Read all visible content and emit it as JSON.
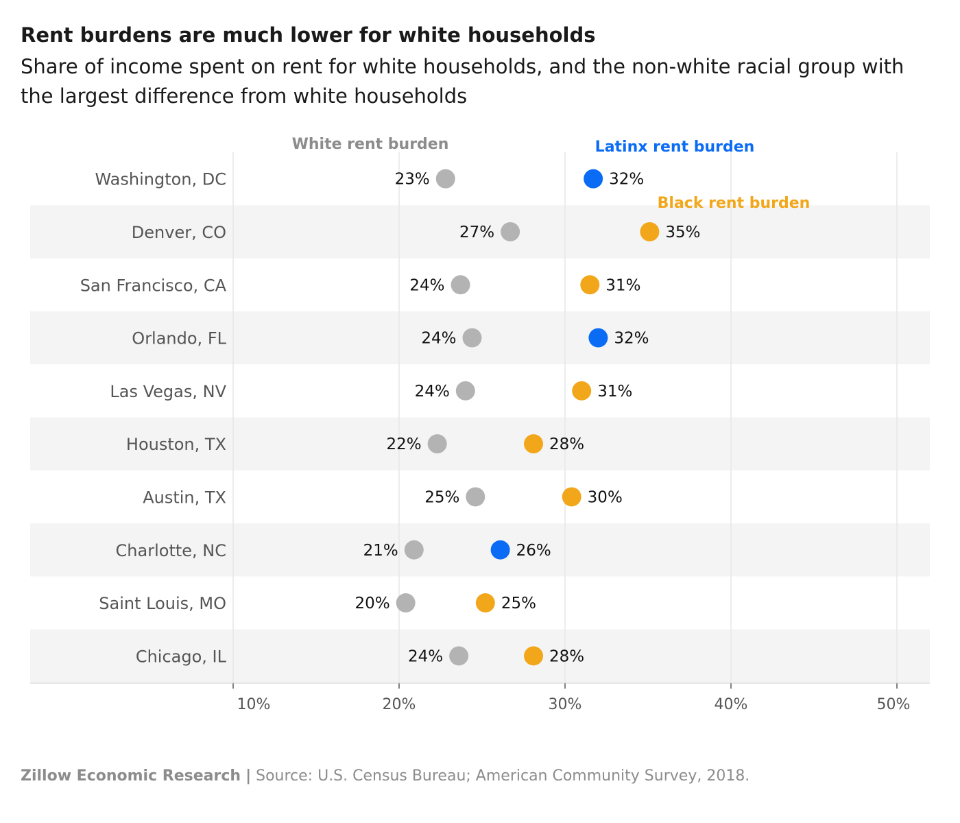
{
  "title": "Rent burdens are much lower for white households",
  "subtitle": "Share of income spent on rent for white households, and the non-white racial group with the largest difference from white households",
  "footer": {
    "org": "Zillow Economic Research",
    "separator": "|",
    "source": "Source: U.S. Census Bureau; American Community Survey, 2018."
  },
  "colors": {
    "white": "#b3b3b3",
    "latinx": "#0a6cf5",
    "black": "#f2a71b",
    "band": "#f4f4f4",
    "grid": "#e6e6e6",
    "label_white": "#8c8c8c",
    "axis_text": "#555555"
  },
  "chart_data": {
    "type": "scatter",
    "subtype": "dot-plot",
    "title": "Rent burdens are much lower for white households",
    "xlim": [
      10,
      52
    ],
    "x_ticks": [
      10,
      20,
      30,
      40,
      50
    ],
    "x_tick_labels": [
      "10%",
      "20%",
      "30%",
      "40%",
      "50%"
    ],
    "unit": "%",
    "grid": true,
    "annotations": {
      "white": "White rent burden",
      "latinx": "Latinx rent burden",
      "black": "Black rent burden"
    },
    "rows": [
      {
        "city": "Washington, DC",
        "white": 22.8,
        "white_label": "23%",
        "compare": 31.7,
        "compare_label": "32%",
        "group": "latinx"
      },
      {
        "city": "Denver, CO",
        "white": 26.7,
        "white_label": "27%",
        "compare": 35.1,
        "compare_label": "35%",
        "group": "black"
      },
      {
        "city": "San Francisco, CA",
        "white": 23.7,
        "white_label": "24%",
        "compare": 31.5,
        "compare_label": "31%",
        "group": "black"
      },
      {
        "city": "Orlando, FL",
        "white": 24.4,
        "white_label": "24%",
        "compare": 32.0,
        "compare_label": "32%",
        "group": "latinx"
      },
      {
        "city": "Las Vegas, NV",
        "white": 24.0,
        "white_label": "24%",
        "compare": 31.0,
        "compare_label": "31%",
        "group": "black"
      },
      {
        "city": "Houston, TX",
        "white": 22.3,
        "white_label": "22%",
        "compare": 28.1,
        "compare_label": "28%",
        "group": "black"
      },
      {
        "city": "Austin, TX",
        "white": 24.6,
        "white_label": "25%",
        "compare": 30.4,
        "compare_label": "30%",
        "group": "black"
      },
      {
        "city": "Charlotte, NC",
        "white": 20.9,
        "white_label": "21%",
        "compare": 26.1,
        "compare_label": "26%",
        "group": "latinx"
      },
      {
        "city": "Saint Louis, MO",
        "white": 20.4,
        "white_label": "20%",
        "compare": 25.2,
        "compare_label": "25%",
        "group": "black"
      },
      {
        "city": "Chicago, IL",
        "white": 23.6,
        "white_label": "24%",
        "compare": 28.1,
        "compare_label": "28%",
        "group": "black"
      }
    ]
  }
}
